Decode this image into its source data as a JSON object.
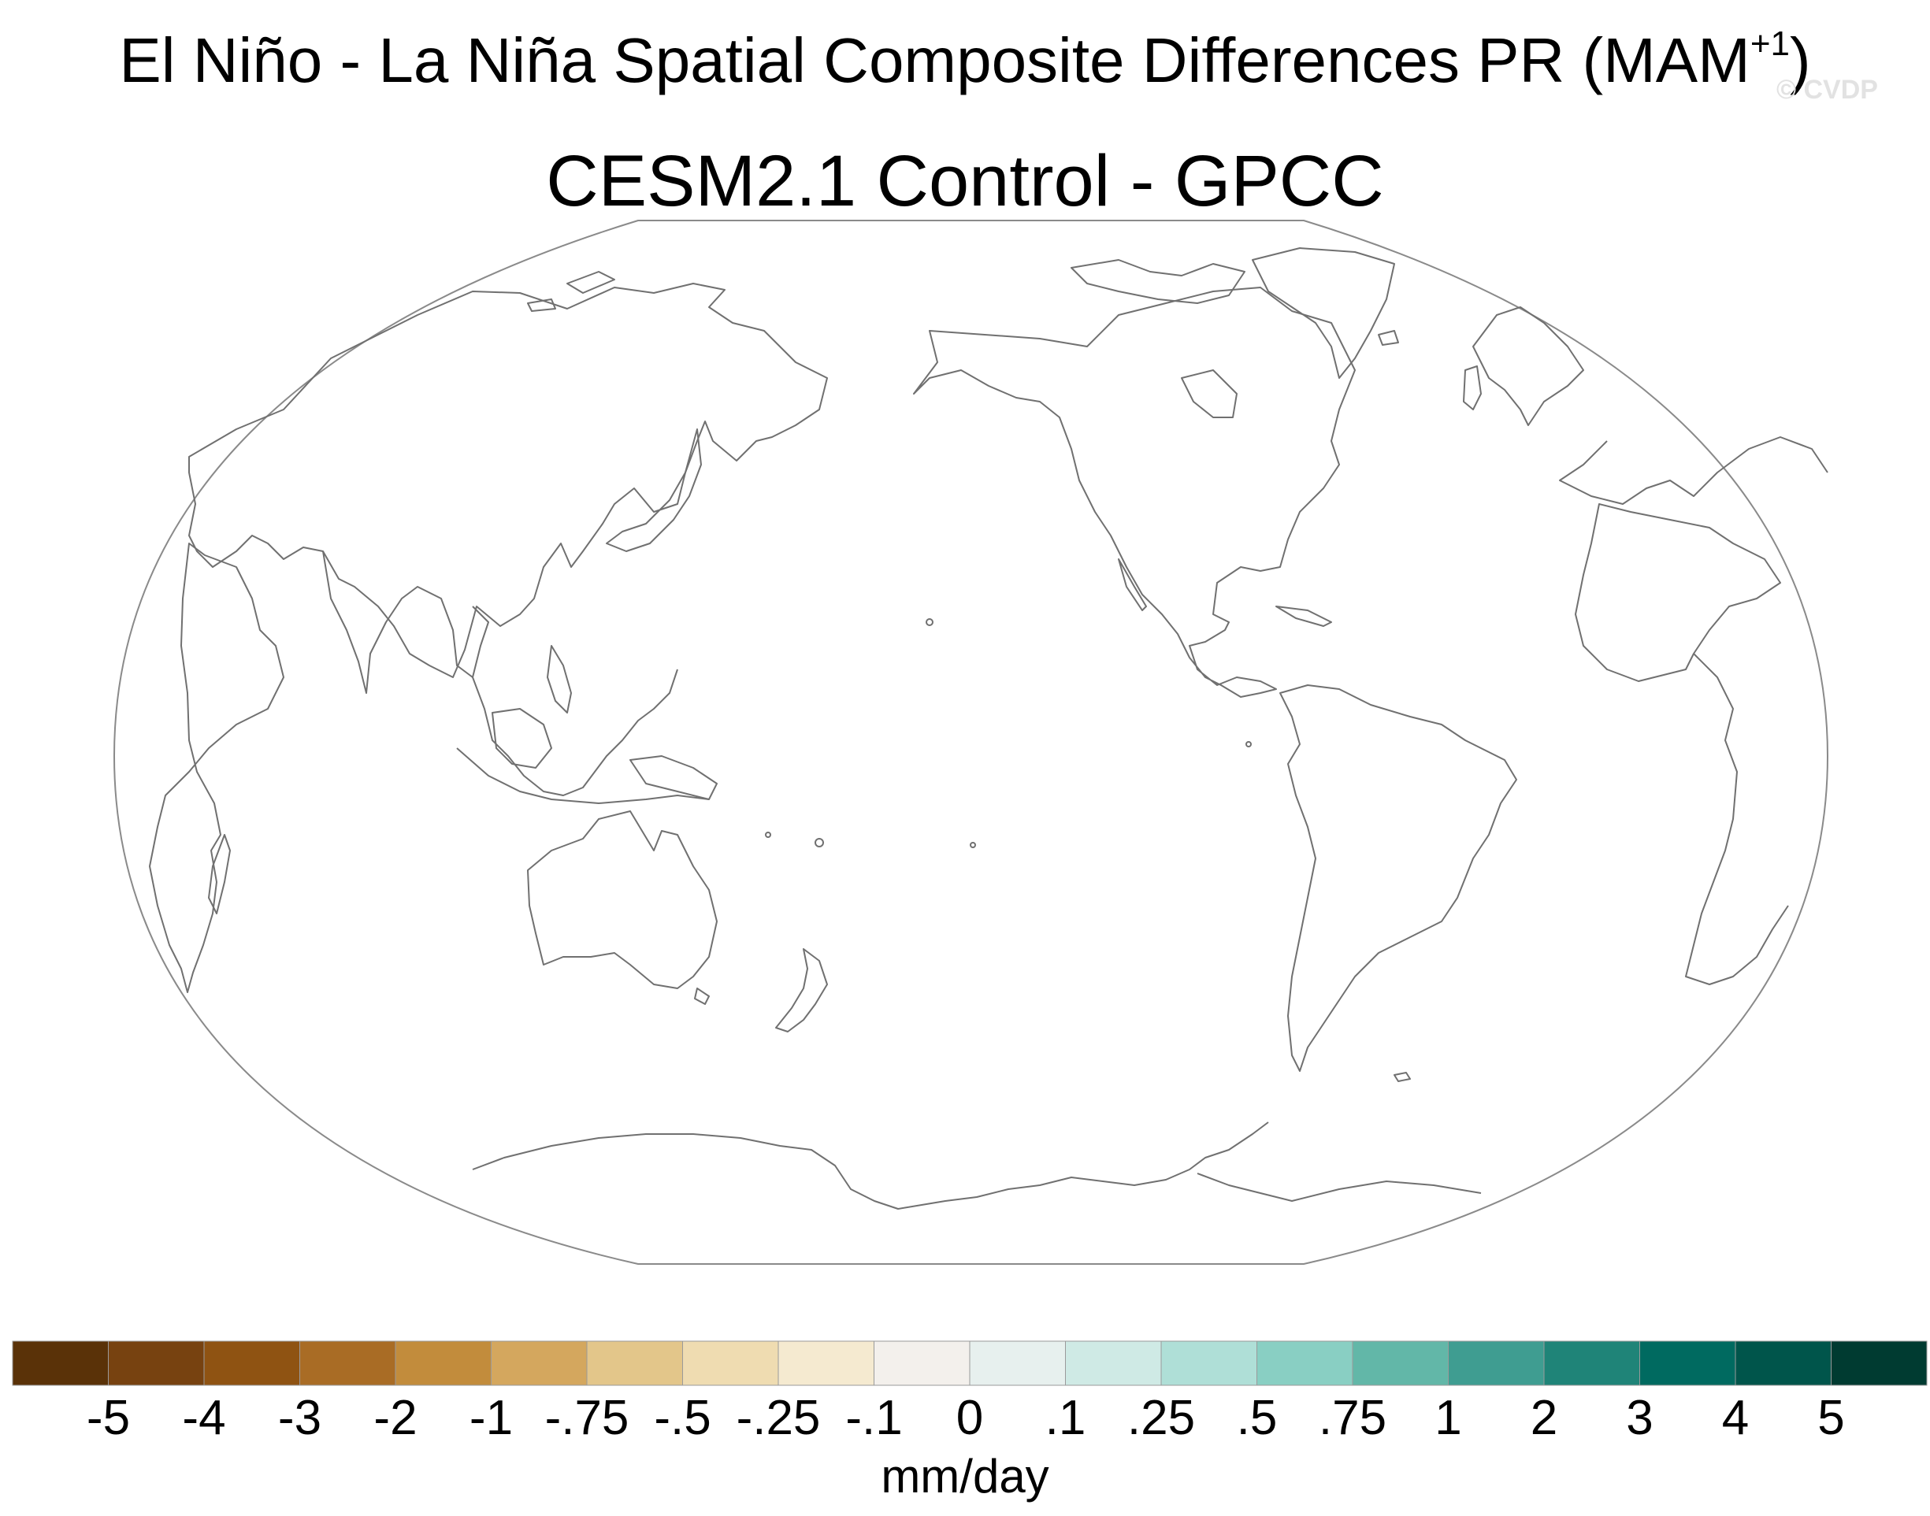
{
  "title": {
    "main": "El Niño - La Niña Spatial Composite Differences PR (MAM",
    "superscript": "+1",
    "close": ")",
    "subtitle": "CESM2.1 Control - GPCC",
    "watermark": "© CVDP"
  },
  "map": {
    "projection": "Robinson-like, Pacific-centered",
    "outline_color": "#888888",
    "coastline_color": "#6e6e6e",
    "fill": "none"
  },
  "colorbar": {
    "units": "mm/day",
    "ticks": [
      "-5",
      "-4",
      "-3",
      "-2",
      "-1",
      "-.75",
      "-.5",
      "-.25",
      "-.1",
      "0",
      ".1",
      ".25",
      ".5",
      ".75",
      "1",
      "2",
      "3",
      "4",
      "5"
    ],
    "colors": [
      "#5a3208",
      "#774210",
      "#8f5312",
      "#a96c25",
      "#c28c3c",
      "#d4a75e",
      "#e3c68a",
      "#efdcb1",
      "#f5ead0",
      "#f3f0ec",
      "#e7f0ee",
      "#cfeae5",
      "#afdfd7",
      "#89cfc3",
      "#62b7a8",
      "#3f9d91",
      "#1f8478",
      "#006a60",
      "#00554b",
      "#003b31"
    ]
  }
}
